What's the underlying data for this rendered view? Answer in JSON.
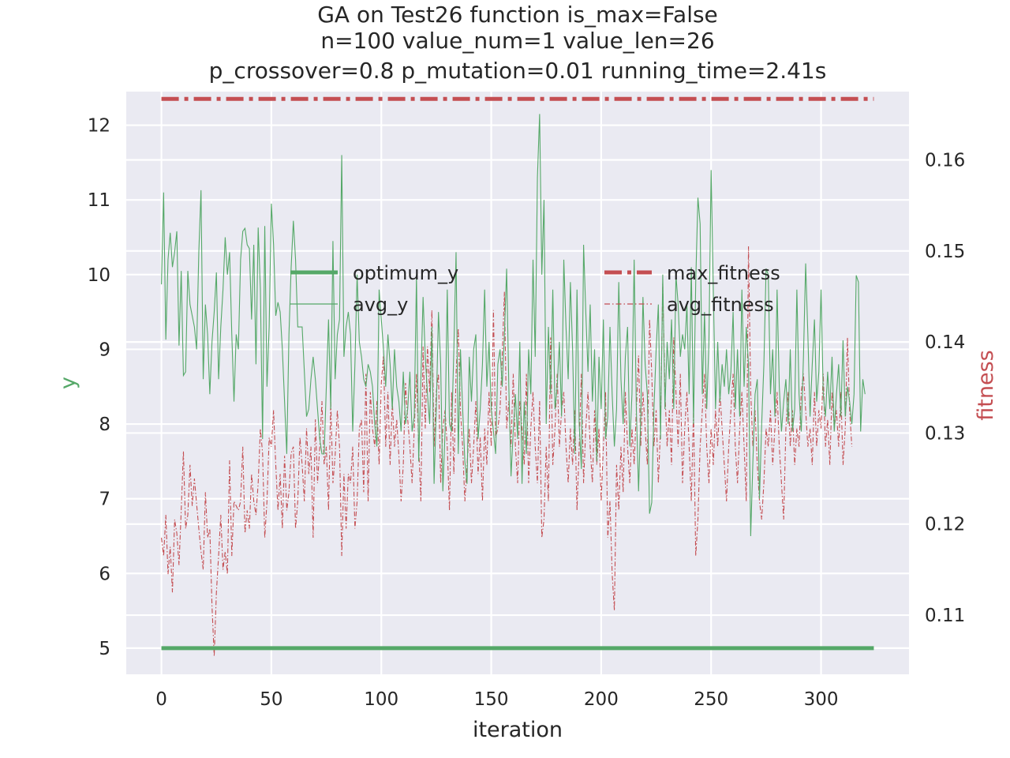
{
  "chart_data": {
    "type": "line",
    "title_lines": [
      "GA on Test26 function  is_max=False",
      "n=100  value_num=1  value_len=26",
      "p_crossover=0.8  p_mutation=0.01 running_time=2.41s"
    ],
    "xlabel": "iteration",
    "ylabel": "y",
    "y2label": "fitness",
    "xlim": [
      -16,
      340
    ],
    "ylim": [
      4.65,
      12.45
    ],
    "y2lim": [
      0.1035,
      0.1675
    ],
    "xticks": [
      0,
      50,
      100,
      150,
      200,
      250,
      300
    ],
    "yticks": [
      5,
      6,
      7,
      8,
      9,
      10,
      11,
      12
    ],
    "y2ticks": [
      0.11,
      0.12,
      0.13,
      0.14,
      0.15,
      0.16
    ],
    "y2tick_labels": [
      "0.11",
      "0.12",
      "0.13",
      "0.14",
      "0.15",
      "0.16"
    ],
    "grid": true,
    "colors": {
      "green": "#55a868",
      "red": "#c44e52",
      "background": "#eaeaf2",
      "grid": "#ffffff"
    },
    "legend_left": {
      "placement": "upper-center-left",
      "items": [
        {
          "label": "optimum_y",
          "style": "thick-solid",
          "color": "#55a868"
        },
        {
          "label": "avg_y",
          "style": "thin-solid",
          "color": "#55a868"
        }
      ]
    },
    "legend_right": {
      "placement": "upper-center-right",
      "items": [
        {
          "label": "max_fitness",
          "style": "thick-dashdot",
          "color": "#c44e52"
        },
        {
          "label": "avg_fitness",
          "style": "thin-dashdot",
          "color": "#c44e52"
        }
      ]
    },
    "series": [
      {
        "name": "optimum_y",
        "axis": "left",
        "x_range": [
          0,
          324
        ],
        "constant": 5.0
      },
      {
        "name": "max_fitness",
        "axis": "right",
        "x_range": [
          0,
          324
        ],
        "constant": 0.1667
      },
      {
        "name": "avg_y",
        "axis": "left",
        "x_start": 0,
        "values": [
          9.87,
          11.1,
          9.13,
          10.2,
          10.56,
          10.1,
          10.3,
          10.58,
          9.05,
          10.05,
          8.65,
          8.7,
          10.05,
          9.6,
          9.45,
          9.3,
          9.0,
          10.3,
          11.13,
          8.6,
          9.6,
          9.2,
          8.4,
          9.1,
          9.5,
          10.03,
          8.6,
          9.3,
          9.8,
          10.5,
          10.0,
          10.3,
          9.2,
          8.3,
          9.2,
          9.0,
          10.2,
          10.58,
          10.62,
          10.4,
          10.35,
          9.4,
          10.4,
          8.8,
          10.63,
          9.8,
          7.8,
          10.65,
          8.5,
          9.3,
          10.95,
          10.4,
          9.45,
          9.63,
          9.5,
          9.0,
          8.3,
          7.6,
          9.2,
          10.1,
          10.72,
          10.2,
          9.3,
          9.3,
          9.3,
          8.7,
          8.1,
          8.2,
          8.6,
          8.9,
          8.6,
          8.2,
          7.8,
          7.6,
          7.6,
          8.5,
          9.4,
          8.2,
          10.45,
          8.6,
          9.2,
          9.4,
          11.6,
          8.9,
          9.3,
          9.5,
          9.2,
          7.9,
          8.8,
          10.0,
          9.1,
          8.9,
          8.6,
          8.5,
          8.8,
          8.7,
          8.5,
          8.0,
          7.7,
          9.8,
          9.4,
          9.0,
          8.5,
          9.2,
          8.8,
          8.2,
          9.0,
          8.5,
          8.3,
          7.9,
          8.7,
          8.0,
          8.2,
          8.7,
          7.9,
          8.1,
          10.0,
          7.5,
          8.6,
          9.7,
          8.9,
          8.4,
          8.0,
          9.3,
          7.2,
          8.2,
          9.5,
          8.8,
          7.1,
          7.9,
          9.8,
          8.0,
          7.9,
          9.0,
          10.3,
          7.6,
          9.0,
          8.2,
          7.5,
          7.2,
          8.9,
          8.3,
          9.0,
          9.2,
          7.8,
          8.2,
          8.8,
          9.8,
          8.5,
          9.1,
          8.2,
          7.9,
          7.6,
          8.8,
          9.0,
          8.5,
          9.2,
          10.08,
          8.5,
          7.3,
          7.9,
          8.4,
          7.8,
          9.1,
          7.2,
          8.3,
          7.6,
          9.0,
          8.4,
          10.2,
          8.9,
          11.3,
          12.15,
          10.0,
          11.0,
          8.0,
          9.3,
          8.4,
          9.8,
          8.2,
          8.5,
          9.1,
          8.1,
          10.2,
          9.3,
          8.6,
          9.9,
          9.0,
          7.6,
          9.8,
          8.0,
          7.4,
          10.4,
          9.5,
          8.7,
          9.6,
          8.3,
          9.0,
          7.5,
          8.9,
          8.2,
          9.4,
          7.8,
          8.1,
          9.3,
          8.4,
          7.7,
          8.2,
          9.9,
          8.6,
          8.0,
          8.9,
          9.3,
          7.7,
          8.4,
          10.2,
          8.2,
          7.1,
          8.1,
          9.7,
          8.8,
          8.4,
          6.8,
          6.95,
          8.2,
          9.0,
          9.6,
          7.8,
          10.0,
          8.2,
          9.1,
          8.6,
          9.4,
          8.2,
          10.0,
          9.6,
          8.9,
          9.2,
          9.0,
          9.6,
          8.4,
          10.1,
          8.0,
          9.9,
          11.03,
          10.68,
          8.4,
          9.5,
          8.2,
          9.1,
          11.4,
          9.8,
          8.2,
          9.1,
          8.3,
          8.8,
          8.5,
          9.0,
          8.4,
          8.7,
          9.5,
          8.2,
          9.0,
          8.1,
          9.8,
          8.5,
          9.3,
          8.8,
          6.5,
          7.5,
          8.4,
          8.6,
          7.0,
          8.0,
          8.8,
          10.08,
          10.0,
          8.4,
          9.0,
          8.1,
          9.8,
          8.5,
          7.9,
          8.3,
          8.6,
          8.0,
          9.0,
          7.9,
          8.2,
          9.8,
          8.4,
          7.9,
          8.9,
          10.15,
          9.2,
          8.1,
          8.8,
          9.4,
          8.3,
          8.7,
          9.8,
          8.4,
          8.1,
          8.7,
          8.2,
          8.9,
          7.9,
          8.4,
          8.8,
          8.1,
          9.12,
          8.1,
          8.5,
          8.3,
          8.0,
          8.4,
          9.99,
          9.9,
          7.9,
          8.6,
          8.4
        ]
      },
      {
        "name": "avg_fitness",
        "axis": "right",
        "x_start": 0,
        "values": [
          0.1185,
          0.1165,
          0.121,
          0.1145,
          0.1175,
          0.1125,
          0.1205,
          0.119,
          0.1155,
          0.1215,
          0.128,
          0.1195,
          0.121,
          0.1265,
          0.122,
          0.125,
          0.1222,
          0.1195,
          0.117,
          0.115,
          0.1235,
          0.1185,
          0.1195,
          0.111,
          0.1055,
          0.1125,
          0.1165,
          0.121,
          0.115,
          0.117,
          0.1145,
          0.127,
          0.1165,
          0.1225,
          0.122,
          0.1215,
          0.1225,
          0.1285,
          0.119,
          0.1215,
          0.1195,
          0.1255,
          0.1225,
          0.121,
          0.1245,
          0.1305,
          0.1278,
          0.1185,
          0.1225,
          0.1295,
          0.1285,
          0.1325,
          0.1265,
          0.1215,
          0.1255,
          0.1195,
          0.1275,
          0.1215,
          0.1235,
          0.1278,
          0.1285,
          0.1195,
          0.1225,
          0.1295,
          0.1265,
          0.1225,
          0.1305,
          0.1255,
          0.1285,
          0.1185,
          0.1315,
          0.1245,
          0.1285,
          0.1335,
          0.1265,
          0.1285,
          0.1215,
          0.1335,
          0.1245,
          0.1275,
          0.1325,
          0.1285,
          0.1165,
          0.1255,
          0.1195,
          0.1255,
          0.1245,
          0.1285,
          0.1195,
          0.1225,
          0.1305,
          0.1315,
          0.1235,
          0.1365,
          0.1225,
          0.1345,
          0.1305,
          0.1285,
          0.1335,
          0.1265,
          0.1355,
          0.1385,
          0.1285,
          0.1345,
          0.1265,
          0.1335,
          0.1285,
          0.1315,
          0.1275,
          0.1225,
          0.1265,
          0.1355,
          0.1315,
          0.1285,
          0.1245,
          0.1305,
          0.1365,
          0.1285,
          0.1225,
          0.1395,
          0.1305,
          0.1395,
          0.1345,
          0.1435,
          0.1285,
          0.1345,
          0.1365,
          0.1245,
          0.1305,
          0.1325,
          0.1285,
          0.1215,
          0.1345,
          0.1255,
          0.1365,
          0.1415,
          0.1325,
          0.1285,
          0.1225,
          0.1265,
          0.1305,
          0.1245,
          0.1285,
          0.1335,
          0.1255,
          0.1295,
          0.1225,
          0.1305,
          0.1265,
          0.1345,
          0.1285,
          0.1435,
          0.1295,
          0.1305,
          0.1325,
          0.1385,
          0.1455,
          0.1305,
          0.1335,
          0.1285,
          0.1365,
          0.1285,
          0.1245,
          0.1335,
          0.1305,
          0.1265,
          0.1365,
          0.1245,
          0.1305,
          0.1345,
          0.1285,
          0.1245,
          0.1335,
          0.1185,
          0.1205,
          0.1285,
          0.1225,
          0.1405,
          0.1265,
          0.1305,
          0.1365,
          0.1285,
          0.1325,
          0.1345,
          0.1285,
          0.1245,
          0.1305,
          0.1265,
          0.1325,
          0.1215,
          0.1285,
          0.1365,
          0.1245,
          0.1305,
          0.1345,
          0.1285,
          0.1245,
          0.1325,
          0.1265,
          0.1305,
          0.1225,
          0.1285,
          0.1345,
          0.1185,
          0.1225,
          0.1145,
          0.1105,
          0.1265,
          0.1215,
          0.1285,
          0.1235,
          0.1345,
          0.1285,
          0.1245,
          0.1305,
          0.1265,
          0.1325,
          0.1385,
          0.1285,
          0.1345,
          0.1305,
          0.1265,
          0.1425,
          0.1365,
          0.1285,
          0.1325,
          0.1245,
          0.1305,
          0.1465,
          0.1345,
          0.1285,
          0.1325,
          0.1265,
          0.1405,
          0.1345,
          0.1285,
          0.1365,
          0.1245,
          0.1305,
          0.1345,
          0.1285,
          0.1225,
          0.1325,
          0.1165,
          0.1205,
          0.1285,
          0.1325,
          0.1365,
          0.1285,
          0.1245,
          0.1305,
          0.1265,
          0.1325,
          0.1285,
          0.1345,
          0.1305,
          0.1265,
          0.1225,
          0.1285,
          0.1325,
          0.1365,
          0.1285,
          0.1245,
          0.1305,
          0.1345,
          0.1285,
          0.1225,
          0.1505,
          0.1345,
          0.1285,
          0.1325,
          0.1265,
          0.1225,
          0.1205,
          0.1245,
          0.1305,
          0.1285,
          0.1325,
          0.1265,
          0.1305,
          0.1345,
          0.1285,
          0.1245,
          0.1205,
          0.1305,
          0.1345,
          0.1285,
          0.1325,
          0.1265,
          0.1305,
          0.1285,
          0.1345,
          0.1365,
          0.1325,
          0.1285,
          0.1305,
          0.1265,
          0.1345,
          0.1285,
          0.1325,
          0.1305,
          0.1365,
          0.1285,
          0.1315,
          0.1265,
          0.1345,
          0.1305,
          0.1325,
          0.1285,
          0.1345,
          0.1265,
          0.1305,
          0.1405,
          0.1325,
          0.1285
        ]
      }
    ]
  }
}
